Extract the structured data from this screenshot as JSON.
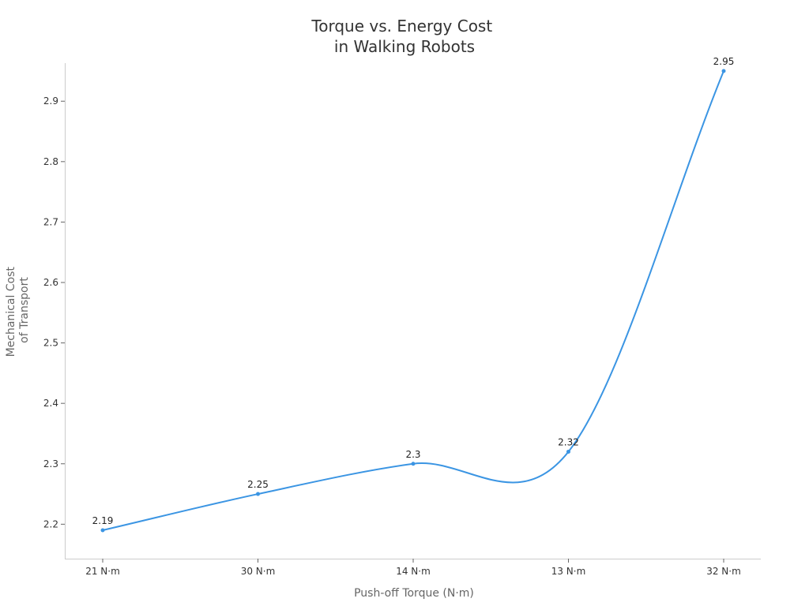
{
  "chart_data": {
    "type": "line",
    "title": [
      "Torque vs. Energy Cost",
      "in Walking Robots"
    ],
    "xlabel": "Push-off Torque (N·m)",
    "ylabel": [
      "Mechanical Cost",
      "of Transport"
    ],
    "categories": [
      "21 N·m",
      "30 N·m",
      "14 N·m",
      "13 N·m",
      "32 N·m"
    ],
    "series": [
      {
        "values": [
          2.19,
          2.25,
          2.3,
          2.32,
          2.95
        ],
        "data_labels": [
          "2.19",
          "2.25",
          "2.3",
          "2.32",
          "2.95"
        ]
      }
    ],
    "yticks": [
      2.2,
      2.3,
      2.4,
      2.5,
      2.6,
      2.7,
      2.8,
      2.9
    ],
    "ytick_labels": [
      "2.2",
      "2.3",
      "2.4",
      "2.5",
      "2.6",
      "2.7",
      "2.8",
      "2.9"
    ],
    "ylim": [
      2.143,
      2.963
    ],
    "grid": false,
    "curve": "smooth",
    "colors": {
      "line": "#3b95e3",
      "axis": "#cccccc",
      "tick": "#666666"
    }
  }
}
